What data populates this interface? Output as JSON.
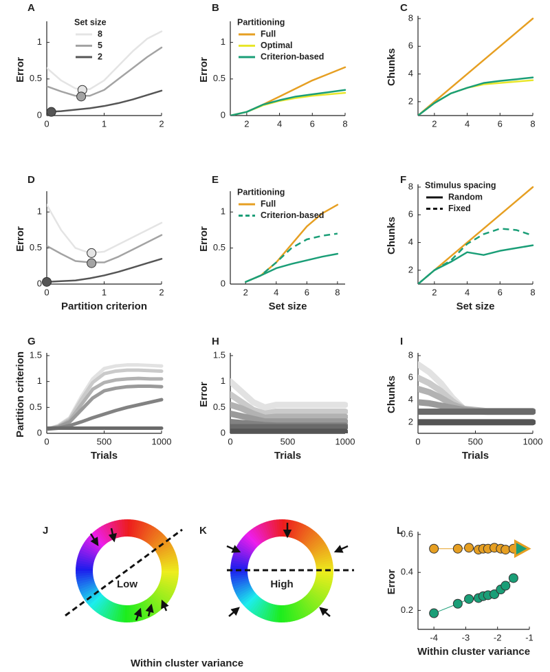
{
  "chart_data": [
    {
      "type": "line",
      "panel": "A",
      "ylabel": "Error",
      "x": [
        0,
        0.25,
        0.5,
        0.75,
        1,
        1.25,
        1.5,
        1.75,
        2
      ],
      "xlim": [
        0,
        2
      ],
      "xticks": [
        0,
        1,
        2
      ],
      "ylim": [
        0,
        1.25
      ],
      "yticks": [
        0,
        0.5,
        1
      ],
      "legend_title": "Set size",
      "legend": "upper left",
      "series": [
        {
          "name": "8",
          "color": "#e4e4e4",
          "values": [
            0.65,
            0.48,
            0.37,
            0.36,
            0.48,
            0.68,
            0.88,
            1.05,
            1.15
          ],
          "opt_x": 0.62,
          "opt_y": 0.35
        },
        {
          "name": "5",
          "color": "#a3a3a3",
          "values": [
            0.4,
            0.33,
            0.27,
            0.27,
            0.35,
            0.5,
            0.65,
            0.8,
            0.93
          ],
          "opt_x": 0.6,
          "opt_y": 0.26
        },
        {
          "name": "2",
          "color": "#555555",
          "values": [
            0.05,
            0.06,
            0.08,
            0.1,
            0.13,
            0.17,
            0.22,
            0.28,
            0.34
          ],
          "opt_x": 0.08,
          "opt_y": 0.05
        }
      ]
    },
    {
      "type": "line",
      "panel": "B",
      "ylabel": "Error",
      "x": [
        1,
        2,
        3,
        4,
        5,
        6,
        7,
        8
      ],
      "xlim": [
        1,
        8
      ],
      "xticks": [
        2,
        4,
        6,
        8
      ],
      "ylim": [
        0,
        1.25
      ],
      "yticks": [
        0,
        0.5,
        1
      ],
      "legend_title": "Partitioning",
      "legend": "upper left",
      "series": [
        {
          "name": "Full",
          "color": "#e69f22",
          "values": [
            0,
            0.05,
            0.15,
            0.26,
            0.37,
            0.48,
            0.57,
            0.66
          ]
        },
        {
          "name": "Optimal",
          "color": "#e8e62a",
          "values": [
            0,
            0.05,
            0.14,
            0.2,
            0.24,
            0.27,
            0.29,
            0.31
          ]
        },
        {
          "name": "Criterion-based",
          "color": "#1a9e77",
          "values": [
            0,
            0.05,
            0.15,
            0.21,
            0.26,
            0.29,
            0.32,
            0.35
          ]
        }
      ]
    },
    {
      "type": "line",
      "panel": "C",
      "ylabel": "Chunks",
      "x": [
        1,
        2,
        3,
        4,
        5,
        6,
        7,
        8
      ],
      "xlim": [
        1,
        8
      ],
      "xticks": [
        2,
        4,
        6,
        8
      ],
      "ylim": [
        1,
        8
      ],
      "yticks": [
        2,
        4,
        6,
        8
      ],
      "series": [
        {
          "color": "#e69f22",
          "values": [
            1,
            2,
            3,
            4,
            5,
            6,
            7,
            8
          ]
        },
        {
          "color": "#e8e62a",
          "values": [
            1,
            1.9,
            2.6,
            3.0,
            3.25,
            3.35,
            3.45,
            3.55
          ]
        },
        {
          "color": "#1a9e77",
          "values": [
            1,
            1.9,
            2.6,
            3.0,
            3.35,
            3.5,
            3.62,
            3.75
          ]
        }
      ]
    },
    {
      "type": "line",
      "panel": "D",
      "ylabel": "Error",
      "xlabel": "Partition criterion",
      "x": [
        0,
        0.25,
        0.5,
        0.75,
        1,
        1.25,
        1.5,
        1.75,
        2
      ],
      "xlim": [
        0,
        2
      ],
      "xticks": [
        0,
        1,
        2
      ],
      "ylim": [
        0,
        1.25
      ],
      "yticks": [
        0,
        0.5,
        1
      ],
      "series": [
        {
          "color": "#e4e4e4",
          "values": [
            1.1,
            0.75,
            0.5,
            0.43,
            0.45,
            0.55,
            0.65,
            0.75,
            0.85
          ],
          "opt_x": 0.78,
          "opt_y": 0.43
        },
        {
          "color": "#a3a3a3",
          "values": [
            0.53,
            0.42,
            0.32,
            0.3,
            0.3,
            0.38,
            0.48,
            0.58,
            0.68
          ],
          "opt_x": 0.78,
          "opt_y": 0.29
        },
        {
          "color": "#555555",
          "values": [
            0.03,
            0.04,
            0.05,
            0.08,
            0.12,
            0.17,
            0.23,
            0.29,
            0.35
          ],
          "opt_x": 0,
          "opt_y": 0.03
        }
      ]
    },
    {
      "type": "line",
      "panel": "E",
      "ylabel": "Error",
      "xlabel": "Set size",
      "x": [
        2,
        3,
        4,
        5,
        6,
        7,
        8
      ],
      "xlim": [
        1,
        8.5
      ],
      "xticks": [
        2,
        4,
        6,
        8
      ],
      "ylim": [
        0,
        1.25
      ],
      "yticks": [
        0,
        0.5,
        1
      ],
      "legend_title": "Partitioning",
      "legend": "upper left",
      "series": [
        {
          "name": "Full",
          "color": "#e69f22",
          "values": [
            0.03,
            0.12,
            0.3,
            0.55,
            0.8,
            0.98,
            1.1
          ]
        },
        {
          "color": "#1a9e77",
          "values": [
            0.03,
            0.12,
            0.22,
            0.28,
            0.33,
            0.38,
            0.42
          ]
        },
        {
          "name": "Criterion-based",
          "color": "#1a9e77",
          "dash": true,
          "values": [
            0.03,
            0.12,
            0.3,
            0.5,
            0.62,
            0.67,
            0.7
          ]
        }
      ]
    },
    {
      "type": "line",
      "panel": "F",
      "ylabel": "Chunks",
      "xlabel": "Set size",
      "x": [
        1,
        2,
        3,
        4,
        5,
        6,
        7,
        8
      ],
      "xlim": [
        1,
        8
      ],
      "xticks": [
        2,
        4,
        6,
        8
      ],
      "ylim": [
        1,
        8
      ],
      "yticks": [
        2,
        4,
        6,
        8
      ],
      "legend_title": "Stimulus spacing",
      "legend": "upper left",
      "style_legend": [
        {
          "name": "Random",
          "dash": false
        },
        {
          "name": "Fixed",
          "dash": true
        }
      ],
      "series": [
        {
          "color": "#e69f22",
          "values": [
            1,
            2,
            3,
            4,
            5,
            6,
            7,
            8
          ]
        },
        {
          "color": "#1a9e77",
          "values": [
            1,
            2,
            2.6,
            3.3,
            3.1,
            3.4,
            3.6,
            3.8
          ]
        },
        {
          "color": "#1a9e77",
          "dash": true,
          "values": [
            1,
            2,
            2.7,
            3.9,
            4.6,
            5.0,
            4.9,
            4.5
          ]
        }
      ]
    },
    {
      "type": "line",
      "panel": "G",
      "ylabel": "Partition criterion",
      "xlabel": "Trials",
      "x": [
        0,
        100,
        200,
        300,
        400,
        500,
        600,
        700,
        800,
        900,
        1000
      ],
      "xlim": [
        0,
        1000
      ],
      "xticks": [
        0,
        500,
        1000
      ],
      "ylim": [
        0,
        1.5
      ],
      "yticks": [
        0,
        0.5,
        1,
        1.5
      ],
      "line_width": 5,
      "series": [
        {
          "color": "#e2e2e2",
          "values": [
            0.08,
            0.15,
            0.3,
            0.7,
            1.05,
            1.25,
            1.3,
            1.32,
            1.32,
            1.31,
            1.3
          ]
        },
        {
          "color": "#cacaca",
          "values": [
            0.08,
            0.14,
            0.28,
            0.65,
            0.98,
            1.15,
            1.2,
            1.22,
            1.22,
            1.21,
            1.2
          ]
        },
        {
          "color": "#b2b2b2",
          "values": [
            0.08,
            0.13,
            0.25,
            0.55,
            0.85,
            0.98,
            1.03,
            1.05,
            1.06,
            1.05,
            1.05
          ]
        },
        {
          "color": "#9a9a9a",
          "values": [
            0.08,
            0.12,
            0.22,
            0.45,
            0.68,
            0.82,
            0.87,
            0.9,
            0.91,
            0.91,
            0.9
          ]
        },
        {
          "color": "#828282",
          "values": [
            0.08,
            0.1,
            0.15,
            0.22,
            0.3,
            0.37,
            0.44,
            0.5,
            0.55,
            0.6,
            0.65
          ]
        },
        {
          "color": "#6a6a6a",
          "values": [
            0.1,
            0.1,
            0.1,
            0.1,
            0.1,
            0.1,
            0.1,
            0.1,
            0.1,
            0.1,
            0.1
          ]
        }
      ]
    },
    {
      "type": "line",
      "panel": "H",
      "ylabel": "Error",
      "xlabel": "Trials",
      "x": [
        0,
        100,
        200,
        300,
        400,
        500,
        600,
        700,
        800,
        900,
        1000
      ],
      "xlim": [
        0,
        1000
      ],
      "xticks": [
        0,
        500,
        1000
      ],
      "ylim": [
        0,
        1.5
      ],
      "yticks": [
        0,
        0.5,
        1,
        1.5
      ],
      "line_width": 9,
      "series": [
        {
          "color": "#e2e2e2",
          "values": [
            1.0,
            0.8,
            0.6,
            0.5,
            0.55,
            0.55,
            0.55,
            0.55,
            0.55,
            0.55,
            0.55
          ]
        },
        {
          "color": "#cacaca",
          "values": [
            0.75,
            0.6,
            0.45,
            0.38,
            0.42,
            0.42,
            0.42,
            0.42,
            0.42,
            0.42,
            0.42
          ]
        },
        {
          "color": "#b2b2b2",
          "values": [
            0.55,
            0.48,
            0.38,
            0.3,
            0.32,
            0.32,
            0.32,
            0.32,
            0.32,
            0.32,
            0.32
          ]
        },
        {
          "color": "#9a9a9a",
          "values": [
            0.38,
            0.33,
            0.28,
            0.23,
            0.23,
            0.23,
            0.23,
            0.23,
            0.23,
            0.23,
            0.23
          ]
        },
        {
          "color": "#828282",
          "values": [
            0.22,
            0.2,
            0.18,
            0.16,
            0.15,
            0.15,
            0.15,
            0.15,
            0.15,
            0.15,
            0.15
          ]
        },
        {
          "color": "#6a6a6a",
          "values": [
            0.12,
            0.12,
            0.12,
            0.12,
            0.12,
            0.12,
            0.12,
            0.12,
            0.12,
            0.12,
            0.12
          ]
        },
        {
          "color": "#555555",
          "values": [
            0.03,
            0.03,
            0.03,
            0.03,
            0.03,
            0.03,
            0.03,
            0.03,
            0.03,
            0.03,
            0.03
          ]
        }
      ]
    },
    {
      "type": "line",
      "panel": "I",
      "ylabel": "Chunks",
      "xlabel": "Trials",
      "x": [
        0,
        100,
        200,
        300,
        400,
        500,
        600,
        700,
        800,
        900,
        1000
      ],
      "xlim": [
        0,
        1000
      ],
      "xticks": [
        0,
        500,
        1000
      ],
      "ylim": [
        1,
        8
      ],
      "yticks": [
        2,
        4,
        6,
        8
      ],
      "line_width": 9,
      "series": [
        {
          "color": "#e2e2e2",
          "values": [
            7.2,
            6.5,
            5.5,
            4.2,
            3.2,
            3.0,
            2.9,
            2.9,
            2.9,
            2.9,
            2.9
          ]
        },
        {
          "color": "#cacaca",
          "values": [
            6.0,
            5.5,
            4.8,
            3.9,
            3.2,
            3.0,
            3.0,
            3.0,
            3.0,
            3.0,
            3.0
          ]
        },
        {
          "color": "#b2b2b2",
          "values": [
            5.0,
            4.7,
            4.2,
            3.6,
            3.2,
            3.1,
            3.0,
            3.0,
            3.0,
            3.0,
            3.0
          ]
        },
        {
          "color": "#9a9a9a",
          "values": [
            3.8,
            3.7,
            3.5,
            3.3,
            3.1,
            3.0,
            3.0,
            3.0,
            3.0,
            3.0,
            3.0
          ]
        },
        {
          "color": "#6a6a6a",
          "values": [
            2.95,
            2.95,
            2.95,
            2.95,
            2.95,
            2.95,
            2.95,
            2.95,
            2.95,
            2.95,
            2.95
          ]
        },
        {
          "color": "#555555",
          "values": [
            2.0,
            2.0,
            2.0,
            2.0,
            2.0,
            2.0,
            2.0,
            2.0,
            2.0,
            2.0,
            2.0
          ]
        }
      ]
    },
    {
      "type": "wheel",
      "panel": "J",
      "label": "Low"
    },
    {
      "type": "wheel",
      "panel": "K",
      "label": "High",
      "xlabel": "Within cluster variance"
    },
    {
      "type": "line",
      "panel": "L",
      "ylabel": "Error",
      "xlabel": "Within cluster variance",
      "xlim": [
        -4.5,
        -1
      ],
      "xticks": [
        -4,
        -3,
        -2,
        -1
      ],
      "ylim": [
        0.1,
        0.6
      ],
      "yticks": [
        0.2,
        0.4,
        0.6
      ],
      "line_width": 1,
      "series": [
        {
          "color": "#e69f22",
          "markers": true,
          "x": [
            -4,
            -3.25,
            -2.9,
            -2.6,
            -2.45,
            -2.3,
            -2.1,
            -1.9,
            -1.75,
            -1.5
          ],
          "values": [
            0.525,
            0.525,
            0.53,
            0.52,
            0.525,
            0.525,
            0.53,
            0.525,
            0.52,
            0.525
          ]
        },
        {
          "color": "#1a9e77",
          "markers": true,
          "x": [
            -4,
            -3.25,
            -2.9,
            -2.6,
            -2.45,
            -2.3,
            -2.1,
            -1.9,
            -1.75,
            -1.5
          ],
          "values": [
            0.185,
            0.235,
            0.26,
            0.265,
            0.275,
            0.28,
            0.285,
            0.31,
            0.33,
            0.37
          ]
        }
      ],
      "triangle": {
        "x": -1.25,
        "y": 0.525,
        "fill": "#1a9e77",
        "edge": "#e69f22"
      }
    }
  ]
}
